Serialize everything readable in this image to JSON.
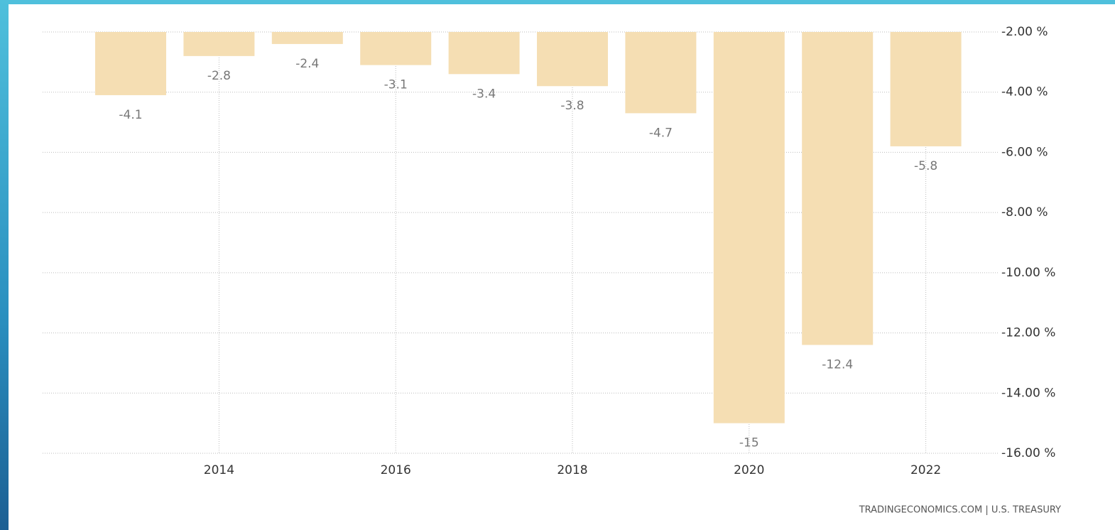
{
  "chart_data": {
    "type": "bar",
    "categories": [
      null,
      "2014",
      null,
      "2016",
      null,
      "2018",
      null,
      "2020",
      null,
      "2022"
    ],
    "values": [
      -4.1,
      -2.8,
      -2.4,
      -3.1,
      -3.4,
      -3.8,
      -4.7,
      -15,
      -12.4,
      -5.8
    ],
    "color": "#f5deb3",
    "ylim": [
      -16,
      -2
    ],
    "yticks": [
      {
        "value": -2,
        "label": "-2.00 %"
      },
      {
        "value": -4,
        "label": "-4.00 %"
      },
      {
        "value": -6,
        "label": "-6.00 %"
      },
      {
        "value": -8,
        "label": "-8.00 %"
      },
      {
        "value": -10,
        "label": "-10.00 %"
      },
      {
        "value": -12,
        "label": "-12.00 %"
      },
      {
        "value": -14,
        "label": "-14.00 %"
      },
      {
        "value": -16,
        "label": "-16.00 %"
      }
    ],
    "grid": true,
    "source": "TRADINGECONOMICS.COM | U.S. TREASURY"
  }
}
